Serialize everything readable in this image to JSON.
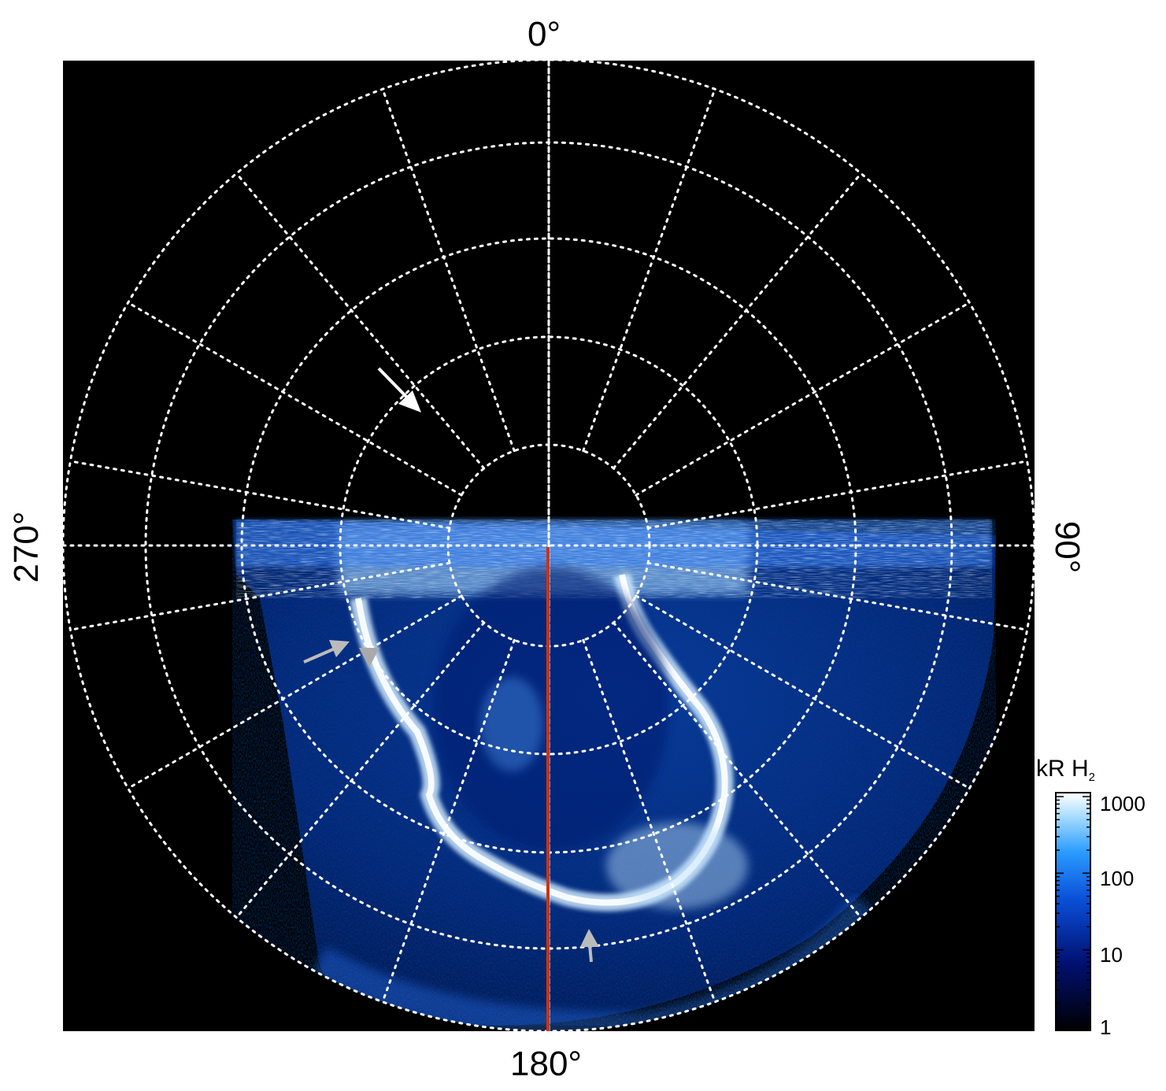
{
  "labels": {
    "top": "0°",
    "bottom": "180°",
    "left": "270°",
    "right": "90°"
  },
  "colorbar": {
    "title_main": "kR H",
    "title_sub": "2",
    "ticks": [
      "1000",
      "100",
      "10",
      "1"
    ]
  },
  "colors": {
    "background": "#000000",
    "grid": "#ffffff",
    "meridian_line": "#cc3311",
    "arrow_white": "#ffffff",
    "arrow_gray": "#bbbbbb",
    "emission_low": "#000a4a",
    "emission_mid": "#1e7fff",
    "emission_high": "#ffffff"
  }
}
